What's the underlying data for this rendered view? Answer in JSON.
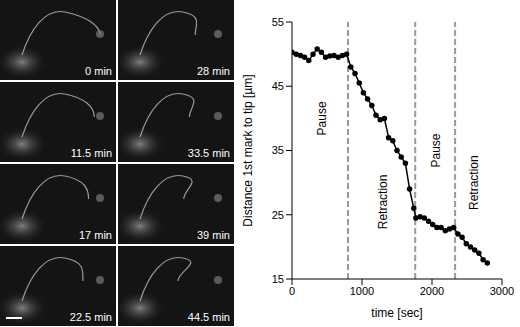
{
  "chart_data": {
    "type": "line",
    "x_label": "time [sec]",
    "y_label": "Distance 1st mark to tip [µm]",
    "x": [
      0,
      60,
      120,
      180,
      240,
      300,
      360,
      420,
      480,
      540,
      600,
      660,
      720,
      780,
      840,
      900,
      960,
      1020,
      1080,
      1140,
      1200,
      1260,
      1320,
      1380,
      1440,
      1500,
      1560,
      1620,
      1680,
      1740,
      1770,
      1830,
      1890,
      1950,
      2010,
      2070,
      2130,
      2190,
      2250,
      2310,
      2370,
      2430,
      2490,
      2550,
      2610,
      2670,
      2730,
      2790
    ],
    "values": [
      50.3,
      50.0,
      49.8,
      49.5,
      49.0,
      50.0,
      50.8,
      50.3,
      49.5,
      49.7,
      49.8,
      49.5,
      49.8,
      50.0,
      48.0,
      47.0,
      45.5,
      44.0,
      43.0,
      42.0,
      40.5,
      39.8,
      40.0,
      37.0,
      36.5,
      35.0,
      34.0,
      33.0,
      29.0,
      26.0,
      24.5,
      24.7,
      24.5,
      24.0,
      23.5,
      23.0,
      23.0,
      22.5,
      22.8,
      23.0,
      22.0,
      21.5,
      20.5,
      20.0,
      19.5,
      19.0,
      18.0,
      17.5
    ],
    "color": "#000000",
    "marker": "circle",
    "line_style": "solid",
    "xlim": [
      0,
      3000
    ],
    "xticks": [
      0,
      1000,
      2000,
      3000
    ],
    "ylim": [
      15,
      55
    ],
    "yticks": [
      15,
      25,
      35,
      45,
      55
    ],
    "grid": false,
    "vlines": [
      800,
      1760,
      2330
    ],
    "annotations": [
      {
        "text": "Pause",
        "x": 420,
        "y": 40
      },
      {
        "text": "Retraction",
        "x": 1300,
        "y": 27
      },
      {
        "text": "Pause",
        "x": 2060,
        "y": 35
      },
      {
        "text": "Retraction",
        "x": 2590,
        "y": 30
      }
    ]
  },
  "panels": {
    "time_labels": [
      "0 min",
      "11.5 min",
      "17 min",
      "22.5 min",
      "28 min",
      "33.5 min",
      "39 min",
      "44.5 min"
    ]
  }
}
